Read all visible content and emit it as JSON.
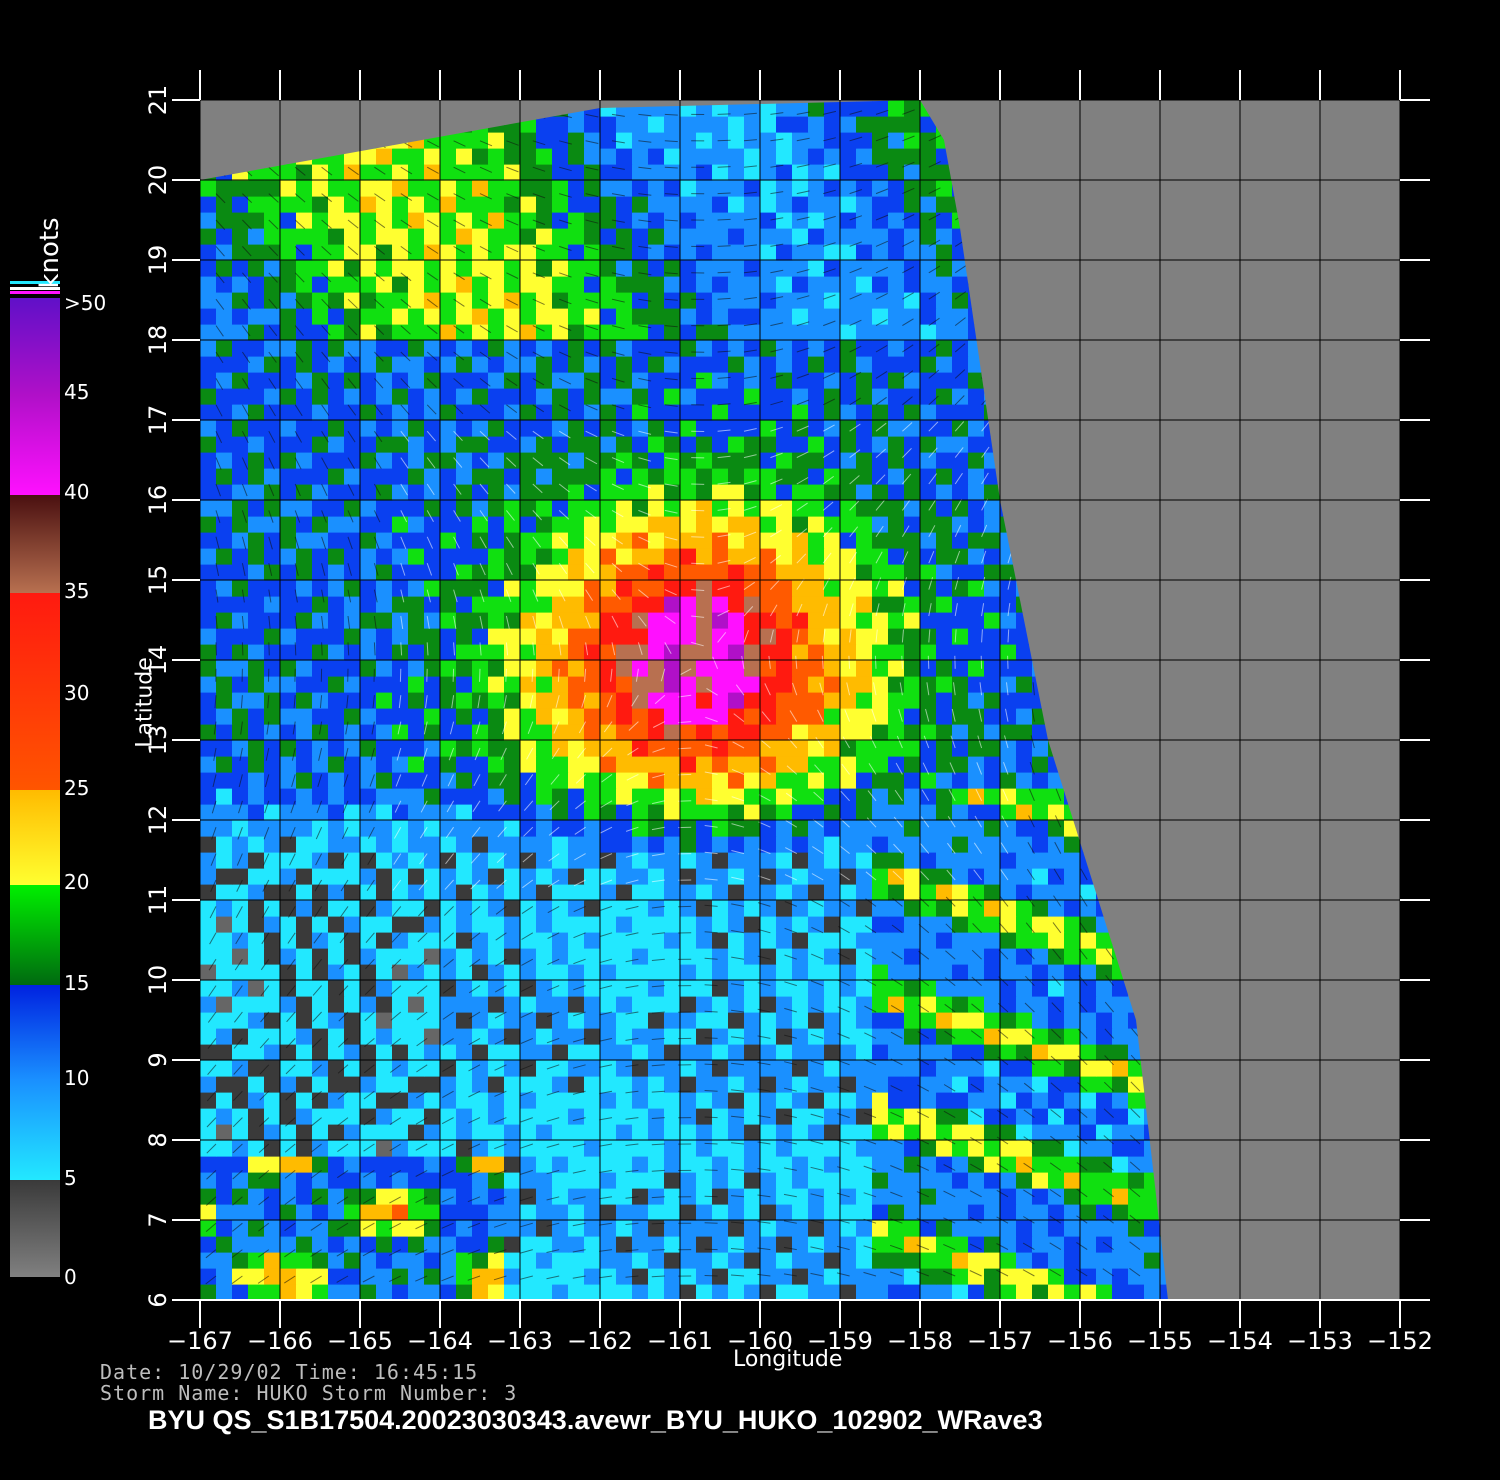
{
  "chart_data": {
    "type": "heatmap",
    "title": "",
    "xlabel": "Longitude",
    "ylabel": "Latitude",
    "x_ticks": [
      "-167",
      "-166",
      "-165",
      "-164",
      "-163",
      "-162",
      "-161",
      "-160",
      "-159",
      "-158",
      "-157",
      "-156",
      "-155",
      "-154",
      "-153",
      "-152"
    ],
    "y_ticks": [
      "6",
      "7",
      "8",
      "9",
      "10",
      "11",
      "12",
      "13",
      "14",
      "15",
      "16",
      "17",
      "18",
      "19",
      "20",
      "21"
    ],
    "xlim": [
      -167,
      -152
    ],
    "ylim": [
      6,
      21
    ],
    "storm_center": {
      "lon": -160.8,
      "lat": 14.0
    },
    "colorbar": {
      "title": "knots",
      "labels": [
        "0",
        "5",
        "10",
        "15",
        "20",
        "25",
        "30",
        "35",
        "40",
        "45",
        ">50"
      ],
      "colors": [
        "#777777",
        "#3a3a3a",
        "#22e8ff",
        "#1a60ff",
        "#0022e0",
        "#008c10",
        "#00f000",
        "#ffff30",
        "#ffbb00",
        "#ff5500",
        "#ff1a10",
        "#b87050",
        "#4a1010",
        "#ff10ff",
        "#b010c8",
        "#6010c8"
      ]
    },
    "legend": "left-vertical colorbar",
    "grid": true
  },
  "meta": {
    "date_line": "Date: 10/29/02   Time: 16:45:15",
    "storm_line": "Storm Name: HUKO   Storm Number: 3"
  },
  "footer": "BYU  QS_S1B17504.20023030343.avewr_BYU_HUKO_102902_WRave3"
}
